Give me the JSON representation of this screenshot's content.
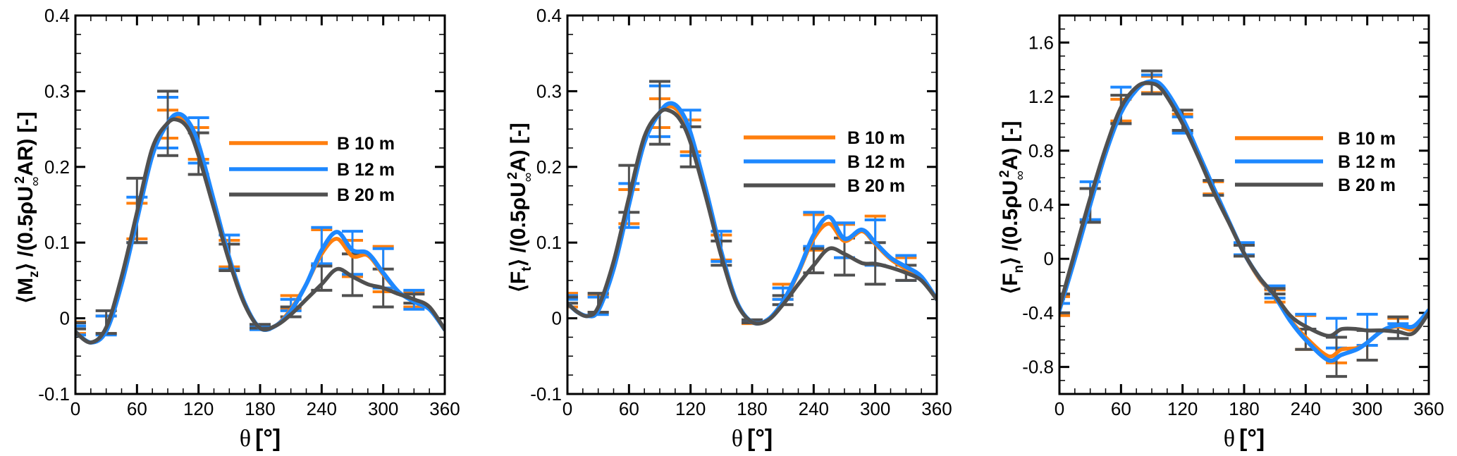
{
  "figure": {
    "series_colors": {
      "B 10 m": "#ff7f0e",
      "B 12 m": "#1e88ff",
      "B 20 m": "#505050"
    }
  },
  "chart_data": [
    {
      "type": "line",
      "id": "mz",
      "title": "",
      "ylabel": "⟨Mz⟩ /(0.5ρU∞²AR) [-]",
      "ylabel_parts": {
        "pre": "⟨M",
        "sub1": "z",
        "mid": "⟩ /(0.5ρU",
        "sub2": "∞",
        "sup": "2",
        "post": "AR) [-]"
      },
      "xlabel": "θ [°]",
      "xlim": [
        0,
        360
      ],
      "ylim": [
        -0.1,
        0.4
      ],
      "xticks": [
        0,
        60,
        120,
        180,
        240,
        300,
        360
      ],
      "yticks": [
        -0.1,
        0,
        0.1,
        0.2,
        0.3,
        0.4
      ],
      "ytick_labels": [
        "-0.1",
        "0",
        "0.1",
        "0.2",
        "0.3",
        "0.4"
      ],
      "x_minor_step": 15,
      "y_minor_step": 0.025,
      "grid": false,
      "legend": {
        "placement": "upper-right-inside",
        "entries": [
          "B 10 m",
          "B 12 m",
          "B 20 m"
        ]
      },
      "x": [
        0,
        15,
        30,
        45,
        60,
        75,
        90,
        100,
        110,
        120,
        135,
        150,
        165,
        180,
        195,
        210,
        225,
        240,
        255,
        270,
        285,
        300,
        315,
        330,
        345,
        360
      ],
      "series": [
        {
          "name": "B 10 m",
          "values": [
            -0.018,
            -0.032,
            -0.015,
            0.05,
            0.135,
            0.22,
            0.258,
            0.266,
            0.255,
            0.225,
            0.15,
            0.078,
            0.02,
            -0.013,
            -0.01,
            0.012,
            0.045,
            0.085,
            0.105,
            0.082,
            0.083,
            0.058,
            0.035,
            0.022,
            0.012,
            -0.015
          ]
        },
        {
          "name": "B 12 m",
          "values": [
            -0.018,
            -0.032,
            -0.017,
            0.045,
            0.13,
            0.215,
            0.258,
            0.27,
            0.26,
            0.23,
            0.155,
            0.08,
            0.02,
            -0.013,
            -0.01,
            0.01,
            0.045,
            0.09,
            0.114,
            0.09,
            0.086,
            0.06,
            0.035,
            0.022,
            0.012,
            -0.015
          ]
        },
        {
          "name": "B 20 m",
          "values": [
            -0.018,
            -0.032,
            -0.012,
            0.055,
            0.14,
            0.225,
            0.258,
            0.262,
            0.25,
            0.215,
            0.145,
            0.075,
            0.018,
            -0.013,
            -0.01,
            0.005,
            0.025,
            0.045,
            0.065,
            0.055,
            0.045,
            0.04,
            0.032,
            0.025,
            0.015,
            -0.015
          ]
        }
      ],
      "errorbars": {
        "x": [
          0,
          30,
          60,
          90,
          120,
          150,
          180,
          210,
          240,
          270,
          300,
          330
        ],
        "B 10 m": [
          [
            -0.02,
            -0.005
          ],
          [
            -0.02,
            0.003
          ],
          [
            0.105,
            0.152
          ],
          [
            0.238,
            0.275
          ],
          [
            0.21,
            0.252
          ],
          [
            0.068,
            0.103
          ],
          [
            -0.014,
            -0.01
          ],
          [
            0.012,
            0.03
          ],
          [
            0.07,
            0.117
          ],
          [
            0.055,
            0.103
          ],
          [
            0.035,
            0.095
          ],
          [
            0.015,
            0.035
          ]
        ],
        "B 12 m": [
          [
            -0.022,
            -0.01
          ],
          [
            -0.022,
            0.003
          ],
          [
            0.1,
            0.16
          ],
          [
            0.225,
            0.292
          ],
          [
            0.205,
            0.265
          ],
          [
            0.065,
            0.11
          ],
          [
            -0.015,
            -0.01
          ],
          [
            0.01,
            0.025
          ],
          [
            0.072,
            0.12
          ],
          [
            0.058,
            0.115
          ],
          [
            0.04,
            0.092
          ],
          [
            0.012,
            0.037
          ]
        ],
        "B 20 m": [
          [
            -0.014,
            -0.006
          ],
          [
            -0.02,
            0.01
          ],
          [
            0.1,
            0.185
          ],
          [
            0.215,
            0.3
          ],
          [
            0.19,
            0.245
          ],
          [
            0.063,
            0.098
          ],
          [
            -0.013,
            -0.008
          ],
          [
            0.002,
            0.015
          ],
          [
            0.037,
            0.069
          ],
          [
            0.03,
            0.085
          ],
          [
            0.015,
            0.065
          ],
          [
            0.02,
            0.032
          ]
        ]
      },
      "legend_labels": [
        "B 10 m",
        "B 12 m",
        "B 20 m"
      ]
    },
    {
      "type": "line",
      "id": "ft",
      "title": "",
      "ylabel": "⟨Ft⟩ /(0.5ρU∞²A) [-]",
      "ylabel_parts": {
        "pre": "⟨F",
        "sub1": "t",
        "mid": "⟩ /(0.5ρU",
        "sub2": "∞",
        "sup": "2",
        "post": "A) [-]"
      },
      "xlabel": "θ [°]",
      "xlim": [
        0,
        360
      ],
      "ylim": [
        -0.1,
        0.4
      ],
      "xticks": [
        0,
        60,
        120,
        180,
        240,
        300,
        360
      ],
      "yticks": [
        -0.1,
        0,
        0.1,
        0.2,
        0.3,
        0.4
      ],
      "ytick_labels": [
        "-0.1",
        "0",
        "0.1",
        "0.2",
        "0.3",
        "0.4"
      ],
      "x_minor_step": 15,
      "y_minor_step": 0.025,
      "grid": false,
      "legend": {
        "placement": "upper-right-inside",
        "entries": [
          "B 10 m",
          "B 12 m",
          "B 20 m"
        ]
      },
      "x": [
        0,
        10,
        20,
        30,
        45,
        60,
        75,
        90,
        100,
        110,
        120,
        135,
        150,
        165,
        180,
        195,
        210,
        225,
        240,
        255,
        270,
        287,
        300,
        315,
        330,
        345,
        360
      ],
      "series": [
        {
          "name": "B 10 m",
          "values": [
            0.02,
            0.008,
            0.003,
            0.012,
            0.07,
            0.155,
            0.235,
            0.272,
            0.28,
            0.27,
            0.24,
            0.165,
            0.085,
            0.022,
            -0.005,
            -0.002,
            0.02,
            0.06,
            0.105,
            0.125,
            0.102,
            0.115,
            0.098,
            0.078,
            0.065,
            0.052,
            0.025
          ]
        },
        {
          "name": "B 12 m",
          "values": [
            0.02,
            0.008,
            0.003,
            0.01,
            0.065,
            0.15,
            0.232,
            0.272,
            0.284,
            0.275,
            0.245,
            0.17,
            0.088,
            0.022,
            -0.005,
            -0.002,
            0.022,
            0.062,
            0.11,
            0.134,
            0.105,
            0.117,
            0.1,
            0.08,
            0.068,
            0.055,
            0.025
          ]
        },
        {
          "name": "B 20 m",
          "values": [
            0.02,
            0.008,
            0.003,
            0.015,
            0.075,
            0.16,
            0.24,
            0.272,
            0.274,
            0.262,
            0.232,
            0.16,
            0.082,
            0.02,
            -0.005,
            -0.003,
            0.018,
            0.045,
            0.07,
            0.092,
            0.085,
            0.073,
            0.072,
            0.067,
            0.06,
            0.05,
            0.025
          ]
        }
      ],
      "errorbars": {
        "x": [
          0,
          30,
          60,
          90,
          120,
          150,
          180,
          210,
          240,
          270,
          300,
          330
        ],
        "B 10 m": [
          [
            0.015,
            0.033
          ],
          [
            0.008,
            0.03
          ],
          [
            0.125,
            0.17
          ],
          [
            0.252,
            0.29
          ],
          [
            0.22,
            0.262
          ],
          [
            0.077,
            0.11
          ],
          [
            -0.007,
            -0.003
          ],
          [
            0.025,
            0.045
          ],
          [
            0.09,
            0.137
          ],
          [
            0.08,
            0.124
          ],
          [
            0.07,
            0.135
          ],
          [
            0.05,
            0.08
          ]
        ],
        "B 12 m": [
          [
            0.025,
            0.03
          ],
          [
            0.005,
            0.028
          ],
          [
            0.12,
            0.178
          ],
          [
            0.24,
            0.307
          ],
          [
            0.215,
            0.275
          ],
          [
            0.075,
            0.115
          ],
          [
            -0.006,
            -0.003
          ],
          [
            0.025,
            0.04
          ],
          [
            0.095,
            0.14
          ],
          [
            0.08,
            0.126
          ],
          [
            0.07,
            0.13
          ],
          [
            0.05,
            0.083
          ]
        ],
        "B 20 m": [
          [
            0.02,
            0.028
          ],
          [
            0.008,
            0.033
          ],
          [
            0.14,
            0.202
          ],
          [
            0.23,
            0.313
          ],
          [
            0.2,
            0.253
          ],
          [
            0.07,
            0.102
          ],
          [
            -0.006,
            -0.002
          ],
          [
            0.018,
            0.03
          ],
          [
            0.06,
            0.092
          ],
          [
            0.057,
            0.106
          ],
          [
            0.045,
            0.1
          ],
          [
            0.05,
            0.07
          ]
        ]
      },
      "legend_labels": [
        "B 10 m",
        "B 12 m",
        "B 20 m"
      ]
    },
    {
      "type": "line",
      "id": "fn",
      "title": "",
      "ylabel": "⟨Fn⟩ /(0.5ρU∞²A) [-]",
      "ylabel_parts": {
        "pre": "⟨F",
        "sub1": "n",
        "mid": "⟩ /(0.5ρU",
        "sub2": "∞",
        "sup": "2",
        "post": "A) [-]"
      },
      "xlabel": "θ [°]",
      "xlim": [
        0,
        360
      ],
      "ylim": [
        -1.0,
        1.8
      ],
      "xticks": [
        0,
        60,
        120,
        180,
        240,
        300,
        360
      ],
      "yticks": [
        -0.8,
        -0.4,
        0,
        0.4,
        0.8,
        1.2,
        1.6
      ],
      "ytick_labels": [
        "-0.8",
        "-0.4",
        "0",
        "0.4",
        "0.8",
        "1.2",
        "1.6"
      ],
      "x_minor_step": 15,
      "y_minor_step": 0.1,
      "grid": false,
      "legend": {
        "placement": "upper-right-inside",
        "entries": [
          "B 10 m",
          "B 12 m",
          "B 20 m"
        ]
      },
      "x": [
        0,
        15,
        30,
        45,
        60,
        75,
        87,
        100,
        120,
        135,
        150,
        165,
        180,
        195,
        210,
        225,
        240,
        262,
        275,
        290,
        300,
        315,
        330,
        345,
        360
      ],
      "series": [
        {
          "name": "B 10 m",
          "values": [
            -0.36,
            0.02,
            0.42,
            0.8,
            1.1,
            1.26,
            1.3,
            1.26,
            1.02,
            0.78,
            0.52,
            0.28,
            0.04,
            -0.15,
            -0.28,
            -0.45,
            -0.58,
            -0.72,
            -0.67,
            -0.66,
            -0.62,
            -0.53,
            -0.5,
            -0.52,
            -0.4
          ]
        },
        {
          "name": "B 12 m",
          "values": [
            -0.38,
            0.0,
            0.4,
            0.78,
            1.08,
            1.25,
            1.31,
            1.28,
            1.04,
            0.79,
            0.53,
            0.28,
            0.04,
            -0.14,
            -0.28,
            -0.46,
            -0.6,
            -0.75,
            -0.71,
            -0.67,
            -0.62,
            -0.53,
            -0.49,
            -0.5,
            -0.38
          ]
        },
        {
          "name": "B 20 m",
          "values": [
            -0.36,
            0.05,
            0.45,
            0.82,
            1.12,
            1.27,
            1.3,
            1.25,
            1.0,
            0.76,
            0.5,
            0.27,
            0.04,
            -0.14,
            -0.27,
            -0.42,
            -0.5,
            -0.57,
            -0.52,
            -0.52,
            -0.53,
            -0.53,
            -0.54,
            -0.55,
            -0.4
          ]
        }
      ],
      "errorbars": {
        "x": [
          0,
          30,
          60,
          90,
          120,
          150,
          180,
          210,
          240,
          270,
          300,
          330
        ],
        "B 10 m": [
          [
            -0.42,
            -0.28
          ],
          [
            0.27,
            0.52
          ],
          [
            1.02,
            1.18
          ],
          [
            1.23,
            1.35
          ],
          [
            0.95,
            1.07
          ],
          [
            0.48,
            0.57
          ],
          [
            0.02,
            0.11
          ],
          [
            -0.32,
            -0.23
          ],
          [
            -0.67,
            -0.42
          ],
          [
            -0.77,
            -0.58
          ],
          [
            -0.75,
            -0.64
          ],
          [
            -0.59,
            -0.44
          ]
        ],
        "B 12 m": [
          [
            -0.4,
            -0.33
          ],
          [
            0.29,
            0.57
          ],
          [
            1.0,
            1.27
          ],
          [
            1.22,
            1.36
          ],
          [
            0.93,
            1.05
          ],
          [
            0.47,
            0.58
          ],
          [
            0.03,
            0.12
          ],
          [
            -0.29,
            -0.2
          ],
          [
            -0.52,
            -0.41
          ],
          [
            -0.66,
            -0.44
          ],
          [
            -0.64,
            -0.41
          ],
          [
            -0.59,
            -0.48
          ]
        ],
        "B 20 m": [
          [
            -0.4,
            -0.26
          ],
          [
            0.27,
            0.52
          ],
          [
            1.0,
            1.21
          ],
          [
            1.22,
            1.39
          ],
          [
            0.95,
            1.1
          ],
          [
            0.47,
            0.58
          ],
          [
            0.02,
            0.1
          ],
          [
            -0.26,
            -0.22
          ],
          [
            -0.67,
            -0.52
          ],
          [
            -0.87,
            -0.58
          ],
          [
            -0.75,
            -0.53
          ],
          [
            -0.59,
            -0.43
          ]
        ]
      },
      "legend_labels": [
        "B 10 m",
        "B 12 m",
        "B 20 m"
      ]
    }
  ]
}
